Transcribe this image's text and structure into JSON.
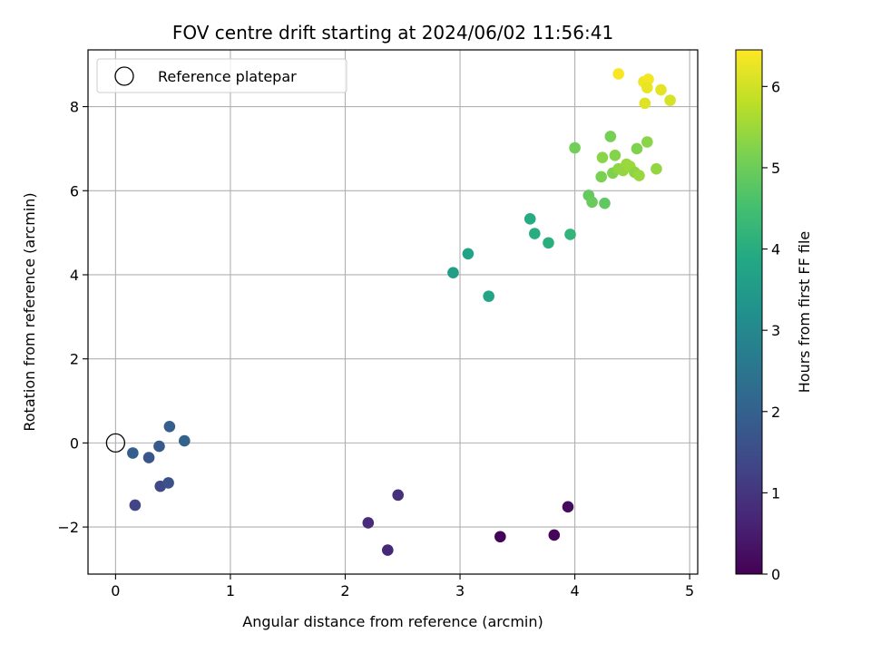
{
  "chart_data": {
    "type": "scatter",
    "title": "FOV centre drift starting at 2024/06/02 11:56:41",
    "xlabel": "Angular distance from reference (arcmin)",
    "ylabel": "Rotation from reference (arcmin)",
    "colorbar_label": "Hours from first FF file",
    "xlim": [
      -0.24,
      5.07
    ],
    "ylim": [
      -3.12,
      9.35
    ],
    "clim": [
      0,
      6.45
    ],
    "x_ticks": [
      0,
      1,
      2,
      3,
      4,
      5
    ],
    "y_ticks": [
      -2,
      0,
      2,
      4,
      6,
      8
    ],
    "colorbar_ticks": [
      0,
      1,
      2,
      3,
      4,
      5,
      6
    ],
    "x_tick_labels": [
      "0",
      "1",
      "2",
      "3",
      "4",
      "5"
    ],
    "y_tick_labels": [
      "−2",
      "0",
      "2",
      "4",
      "6",
      "8"
    ],
    "colorbar_tick_labels": [
      "0",
      "1",
      "2",
      "3",
      "4",
      "5",
      "6"
    ],
    "grid": true,
    "colormap": "viridis",
    "legend": {
      "placement": "top-left",
      "entries": [
        "Reference platepar"
      ]
    },
    "reference": {
      "name": "Reference platepar",
      "x": 0,
      "y": 0
    },
    "points": [
      {
        "x": 3.35,
        "y": -2.23,
        "t": 0.05
      },
      {
        "x": 3.82,
        "y": -2.19,
        "t": 0.1
      },
      {
        "x": 3.94,
        "y": -1.52,
        "t": 0.2
      },
      {
        "x": 2.37,
        "y": -2.55,
        "t": 0.7
      },
      {
        "x": 2.2,
        "y": -1.9,
        "t": 0.8
      },
      {
        "x": 2.46,
        "y": -1.24,
        "t": 0.9
      },
      {
        "x": 0.17,
        "y": -1.48,
        "t": 1.3
      },
      {
        "x": 0.39,
        "y": -1.03,
        "t": 1.4
      },
      {
        "x": 0.46,
        "y": -0.95,
        "t": 1.6
      },
      {
        "x": 0.29,
        "y": -0.35,
        "t": 1.7
      },
      {
        "x": 0.38,
        "y": -0.08,
        "t": 1.8
      },
      {
        "x": 0.15,
        "y": -0.24,
        "t": 1.9
      },
      {
        "x": 0.47,
        "y": 0.39,
        "t": 1.95
      },
      {
        "x": 0.6,
        "y": 0.05,
        "t": 2.05
      },
      {
        "x": 2.94,
        "y": 4.05,
        "t": 3.6
      },
      {
        "x": 3.07,
        "y": 4.5,
        "t": 3.7
      },
      {
        "x": 3.25,
        "y": 3.49,
        "t": 3.75
      },
      {
        "x": 3.61,
        "y": 5.33,
        "t": 3.95
      },
      {
        "x": 3.65,
        "y": 4.98,
        "t": 4.0
      },
      {
        "x": 3.77,
        "y": 4.76,
        "t": 4.05
      },
      {
        "x": 3.96,
        "y": 4.96,
        "t": 4.2
      },
      {
        "x": 4.0,
        "y": 7.02,
        "t": 5.05
      },
      {
        "x": 4.12,
        "y": 5.89,
        "t": 4.9
      },
      {
        "x": 4.15,
        "y": 5.73,
        "t": 4.95
      },
      {
        "x": 4.26,
        "y": 5.7,
        "t": 4.85
      },
      {
        "x": 4.23,
        "y": 6.33,
        "t": 5.15
      },
      {
        "x": 4.24,
        "y": 6.79,
        "t": 5.3
      },
      {
        "x": 4.31,
        "y": 7.29,
        "t": 5.1
      },
      {
        "x": 4.33,
        "y": 6.42,
        "t": 5.2
      },
      {
        "x": 4.35,
        "y": 6.84,
        "t": 5.25
      },
      {
        "x": 4.38,
        "y": 6.52,
        "t": 5.35
      },
      {
        "x": 4.42,
        "y": 6.48,
        "t": 5.4
      },
      {
        "x": 4.45,
        "y": 6.63,
        "t": 5.45
      },
      {
        "x": 4.48,
        "y": 6.58,
        "t": 5.5
      },
      {
        "x": 4.52,
        "y": 6.44,
        "t": 5.35
      },
      {
        "x": 4.54,
        "y": 7.0,
        "t": 5.2
      },
      {
        "x": 4.56,
        "y": 6.36,
        "t": 5.45
      },
      {
        "x": 4.63,
        "y": 7.16,
        "t": 5.3
      },
      {
        "x": 4.71,
        "y": 6.52,
        "t": 5.4
      },
      {
        "x": 4.38,
        "y": 8.78,
        "t": 6.4
      },
      {
        "x": 4.6,
        "y": 8.59,
        "t": 6.3
      },
      {
        "x": 4.64,
        "y": 8.65,
        "t": 6.35
      },
      {
        "x": 4.63,
        "y": 8.45,
        "t": 6.25
      },
      {
        "x": 4.61,
        "y": 8.08,
        "t": 6.15
      },
      {
        "x": 4.75,
        "y": 8.4,
        "t": 6.2
      },
      {
        "x": 4.83,
        "y": 8.15,
        "t": 6.05
      }
    ]
  }
}
